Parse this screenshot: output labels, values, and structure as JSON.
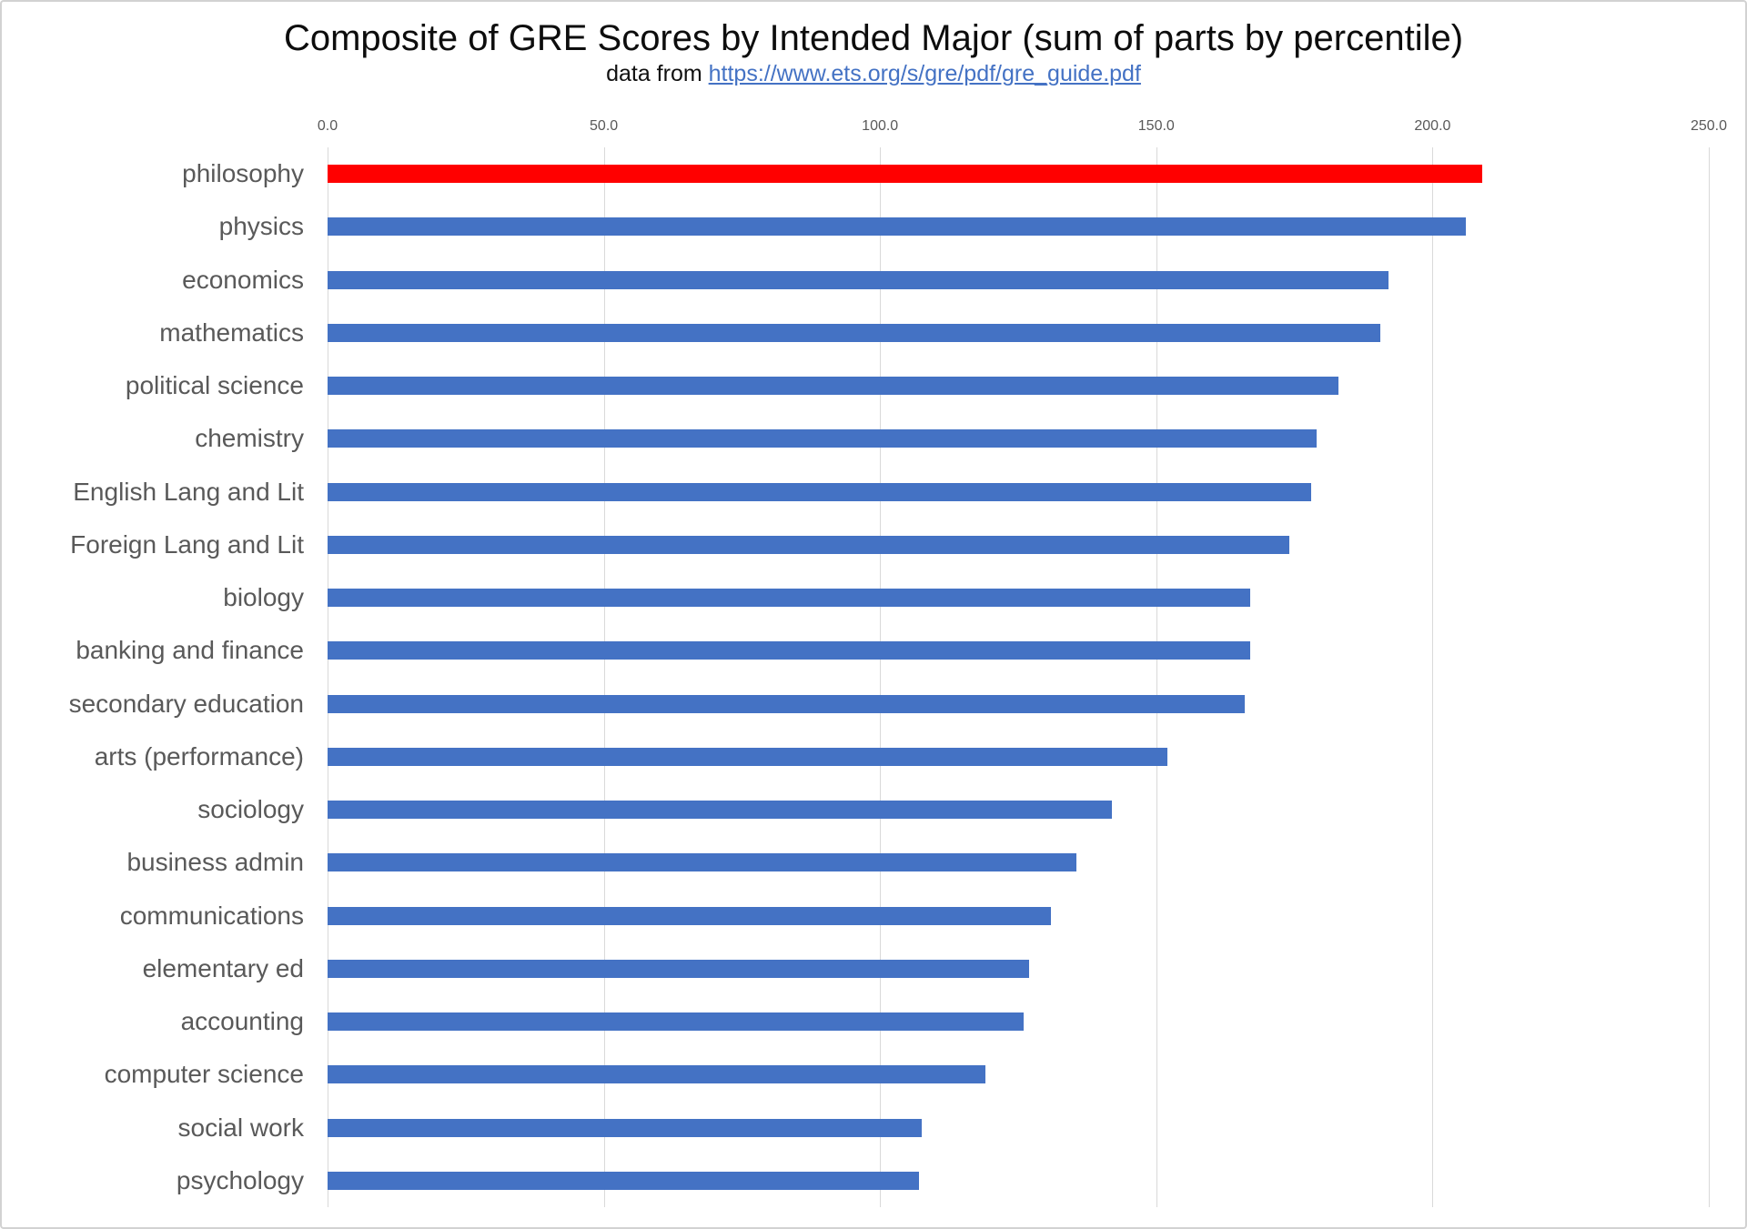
{
  "chart_data": {
    "type": "bar",
    "orientation": "horizontal",
    "title": "Composite of GRE Scores by Intended Major (sum of parts by percentile)",
    "subtitle_prefix": "data from ",
    "subtitle_link": "https://www.ets.org/s/gre/pdf/gre_guide.pdf",
    "categories": [
      "philosophy",
      "physics",
      "economics",
      "mathematics",
      "political science",
      "chemistry",
      "English Lang and Lit",
      "Foreign Lang and Lit",
      "biology",
      "banking and finance",
      "secondary education",
      "arts (performance)",
      "sociology",
      "business admin",
      "communications",
      "elementary ed",
      "accounting",
      "computer science",
      "social work",
      "psychology"
    ],
    "values": [
      209,
      206,
      192,
      190.5,
      183,
      179,
      178,
      174,
      167,
      167,
      166,
      152,
      142,
      135.5,
      131,
      127,
      126,
      119,
      107.5,
      107
    ],
    "xlim": [
      0,
      250
    ],
    "x_ticks": [
      "0.0",
      "50.0",
      "100.0",
      "150.0",
      "200.0",
      "250.0"
    ],
    "grid": true,
    "legend": false,
    "bar_color": "#4472c4",
    "highlight_index": 0,
    "highlight_color": "#ff0000",
    "label_color": "#595959",
    "gridline_color": "#d9d9d9"
  }
}
